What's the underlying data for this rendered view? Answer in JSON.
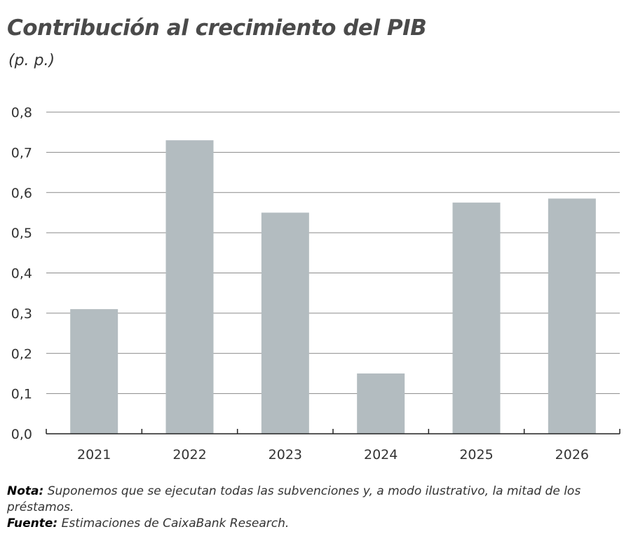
{
  "title": "Contribución al crecimiento del PIB",
  "subtitle": "(p. p.)",
  "chart_data": {
    "type": "bar",
    "categories": [
      "2021",
      "2022",
      "2023",
      "2024",
      "2025",
      "2026"
    ],
    "values": [
      0.31,
      0.73,
      0.55,
      0.15,
      0.575,
      0.585
    ],
    "ylim": [
      0,
      0.8
    ],
    "yticks": [
      "0,0",
      "0,1",
      "0,2",
      "0,3",
      "0,4",
      "0,5",
      "0,6",
      "0,7",
      "0,8"
    ],
    "grid": true,
    "bar_color": "#b3bcc0"
  },
  "note": {
    "label": "Nota:",
    "text": " Suponemos que se ejecutan todas las subvenciones y, a modo ilustrativo,  la mitad de los préstamos."
  },
  "source": {
    "label": "Fuente:",
    "text": " Estimaciones de CaixaBank Research."
  }
}
